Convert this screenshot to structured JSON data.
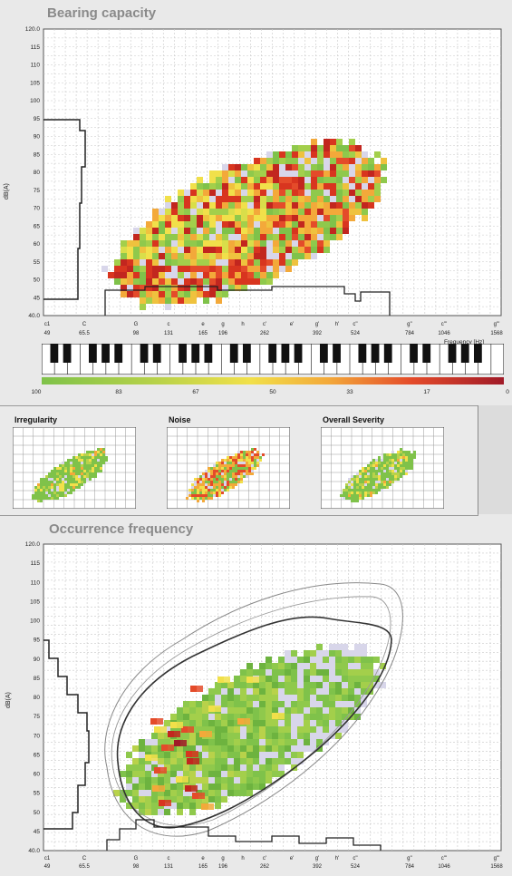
{
  "top": {
    "title": "Bearing capacity"
  },
  "bottom": {
    "title": "Occurrence frequency"
  },
  "thumbs": [
    {
      "label": "Irregularity"
    },
    {
      "label": "Noise"
    },
    {
      "label": "Overall Severity"
    }
  ],
  "axes": {
    "ylabel": "dB(A)",
    "xlabel": "Frequency [Hz]",
    "y_ticks": [
      "120.0",
      "115",
      "110",
      "105",
      "100",
      "95",
      "90",
      "85",
      "80",
      "75",
      "70",
      "65",
      "60",
      "55",
      "50",
      "45",
      "40.0"
    ],
    "note_ticks": [
      "c1",
      "C",
      "G",
      "c",
      "e",
      "g",
      "h",
      "c'",
      "e'",
      "g'",
      "h'",
      "c''",
      "g''",
      "c'''",
      "g'''"
    ],
    "freq_ticks": [
      "49",
      "65.5",
      "98",
      "131",
      "165",
      "196",
      "262",
      "392",
      "524",
      "784",
      "1046",
      "1568"
    ]
  },
  "colorscale": {
    "ticks": [
      "100",
      "83",
      "67",
      "50",
      "33",
      "17",
      "0"
    ],
    "colors": [
      "#7fc24a",
      "#b8d24a",
      "#f1e04a",
      "#f3a93a",
      "#e44b2a",
      "#a01a28"
    ]
  },
  "chart_data": {
    "type": "heatmap",
    "title": "Bearing capacity / Occurrence frequency",
    "xlabel": "Frequency [Hz]",
    "ylabel": "dB(A)",
    "ylim": [
      40,
      120
    ],
    "x_tick_labels": [
      "49",
      "65.5",
      "98",
      "131",
      "165",
      "196",
      "262",
      "392",
      "524",
      "784",
      "1046",
      "1568"
    ],
    "y_tick_labels": [
      "120.0",
      "115",
      "110",
      "105",
      "100",
      "95",
      "90",
      "85",
      "80",
      "75",
      "70",
      "65",
      "60",
      "55",
      "50",
      "45",
      "40.0"
    ],
    "colorbar": {
      "ticks": [
        100,
        83,
        67,
        50,
        33,
        17,
        0
      ]
    }
  }
}
